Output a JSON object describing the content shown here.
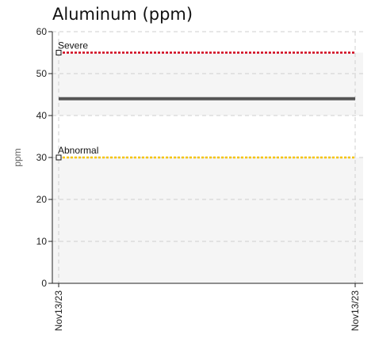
{
  "chart_data": {
    "type": "line",
    "title": "Aluminum (ppm)",
    "xlabel": "",
    "ylabel": "ppm",
    "ylim": [
      0,
      60
    ],
    "y_ticks": [
      0,
      10,
      20,
      30,
      40,
      50,
      60
    ],
    "y_tick_labels": [
      "0",
      "10",
      "20",
      "30",
      "40",
      "50",
      "60"
    ],
    "x_tick_labels": [
      "Nov13/23",
      "Nov13/23"
    ],
    "grid": true,
    "series": [
      {
        "values": [
          44,
          44
        ],
        "color": "#555555"
      }
    ],
    "thresholds": [
      {
        "label": "Severe",
        "value": 55,
        "color": "#d0021b"
      },
      {
        "label": "Abnormal",
        "value": 30,
        "color": "#f5c400"
      }
    ],
    "bands": [
      {
        "from": 0,
        "to": 30,
        "color": "#f5f5f5"
      },
      {
        "from": 30,
        "to": 40,
        "color": "#ffffff"
      },
      {
        "from": 40,
        "to": 55,
        "color": "#f5f5f5"
      },
      {
        "from": 55,
        "to": 60,
        "color": "#ffffff"
      }
    ],
    "colors": {
      "axis": "#222222",
      "grid": "#cfcfcf"
    }
  }
}
